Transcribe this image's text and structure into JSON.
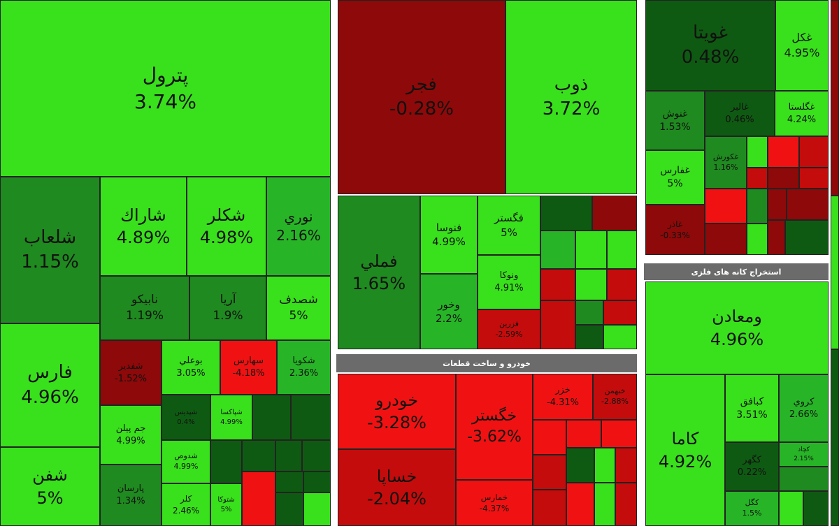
{
  "groups": [
    "خودرو و ساخت قطعات",
    "استخراج کانه های فلزی"
  ],
  "tiles": [
    {
      "name": "پترول",
      "change": "3.74%"
    },
    {
      "name": "شلعاب",
      "change": "1.15%"
    },
    {
      "name": "فارس",
      "change": "4.96%"
    },
    {
      "name": "شفن",
      "change": "5%"
    },
    {
      "name": "شاراك",
      "change": "4.89%"
    },
    {
      "name": "شكلر",
      "change": "4.98%"
    },
    {
      "name": "نوري",
      "change": "2.16%"
    },
    {
      "name": "نابيكو",
      "change": "1.19%"
    },
    {
      "name": "آريا",
      "change": "1.9%"
    },
    {
      "name": "شصدف",
      "change": "5%"
    },
    {
      "name": "شفدير",
      "change": "-1.52%"
    },
    {
      "name": "بوعلي",
      "change": "3.05%"
    },
    {
      "name": "سهارس",
      "change": "-4.18%"
    },
    {
      "name": "شكويا",
      "change": "2.36%"
    },
    {
      "name": "جم پيلن",
      "change": "4.99%"
    },
    {
      "name": "پارسان",
      "change": "1.34%"
    },
    {
      "name": "شپديس",
      "change": "0.4%"
    },
    {
      "name": "شپاكسا",
      "change": "4.99%"
    },
    {
      "name": "شدوص",
      "change": "4.99%"
    },
    {
      "name": "كلر",
      "change": "2.46%"
    },
    {
      "name": "شتوكا",
      "change": "5%"
    },
    {
      "name": "فجر",
      "change": "-0.28%"
    },
    {
      "name": "ذوب",
      "change": "3.72%"
    },
    {
      "name": "فملي",
      "change": "1.65%"
    },
    {
      "name": "فنوسا",
      "change": "4.99%"
    },
    {
      "name": "فگستر",
      "change": "5%"
    },
    {
      "name": "وخور",
      "change": "2.2%"
    },
    {
      "name": "ونوكا",
      "change": "4.91%"
    },
    {
      "name": "فزرين",
      "change": "-2.59%"
    },
    {
      "name": "خودرو",
      "change": "-3.28%"
    },
    {
      "name": "خساپا",
      "change": "-2.04%"
    },
    {
      "name": "خگستر",
      "change": "-3.62%"
    },
    {
      "name": "خزر",
      "change": "-4.31%"
    },
    {
      "name": "خبهمن",
      "change": "-2.88%"
    },
    {
      "name": "خمارس",
      "change": "-4.37%"
    },
    {
      "name": "غويتا",
      "change": "0.48%"
    },
    {
      "name": "غكل",
      "change": "4.95%"
    },
    {
      "name": "غنوش",
      "change": "1.53%"
    },
    {
      "name": "غالبر",
      "change": "0.46%"
    },
    {
      "name": "غگلستا",
      "change": "4.24%"
    },
    {
      "name": "غفارس",
      "change": "5%"
    },
    {
      "name": "غكورش",
      "change": "1.16%"
    },
    {
      "name": "غاذر",
      "change": "-0.33%"
    },
    {
      "name": "ومعادن",
      "change": "4.96%"
    },
    {
      "name": "كاما",
      "change": "4.92%"
    },
    {
      "name": "كبافق",
      "change": "3.51%"
    },
    {
      "name": "كروي",
      "change": "2.66%"
    },
    {
      "name": "كچاد",
      "change": "2.15%"
    },
    {
      "name": "كگهر",
      "change": "0.22%"
    },
    {
      "name": "كگل",
      "change": "1.5%"
    }
  ]
}
